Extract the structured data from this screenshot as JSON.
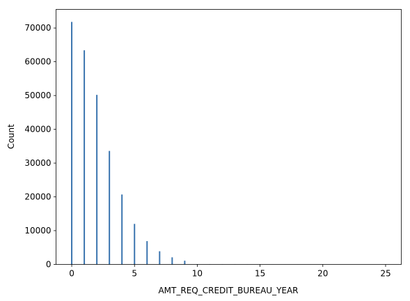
{
  "chart_data": {
    "type": "bar",
    "title": "",
    "xlabel": "AMT_REQ_CREDIT_BUREAU_YEAR",
    "ylabel": "Count",
    "xlim": [
      -1.25,
      26.25
    ],
    "ylim": [
      0,
      75500
    ],
    "x_ticks": [
      0,
      5,
      10,
      15,
      20,
      25
    ],
    "y_ticks": [
      0,
      10000,
      20000,
      30000,
      40000,
      50000,
      60000,
      70000
    ],
    "grid": false,
    "legend": "none",
    "bar_color": "#3b75af",
    "x": [
      0,
      1,
      2,
      3,
      4,
      5,
      6,
      7,
      8,
      9,
      10,
      11,
      12,
      13,
      14,
      15,
      16,
      17,
      18,
      19,
      20,
      21,
      22,
      23,
      24,
      25
    ],
    "values": [
      71800,
      63400,
      50200,
      33600,
      20700,
      12000,
      6900,
      3900,
      2100,
      1100,
      100,
      50,
      40,
      30,
      20,
      15,
      10,
      8,
      6,
      5,
      4,
      3,
      2,
      2,
      1,
      1
    ]
  }
}
